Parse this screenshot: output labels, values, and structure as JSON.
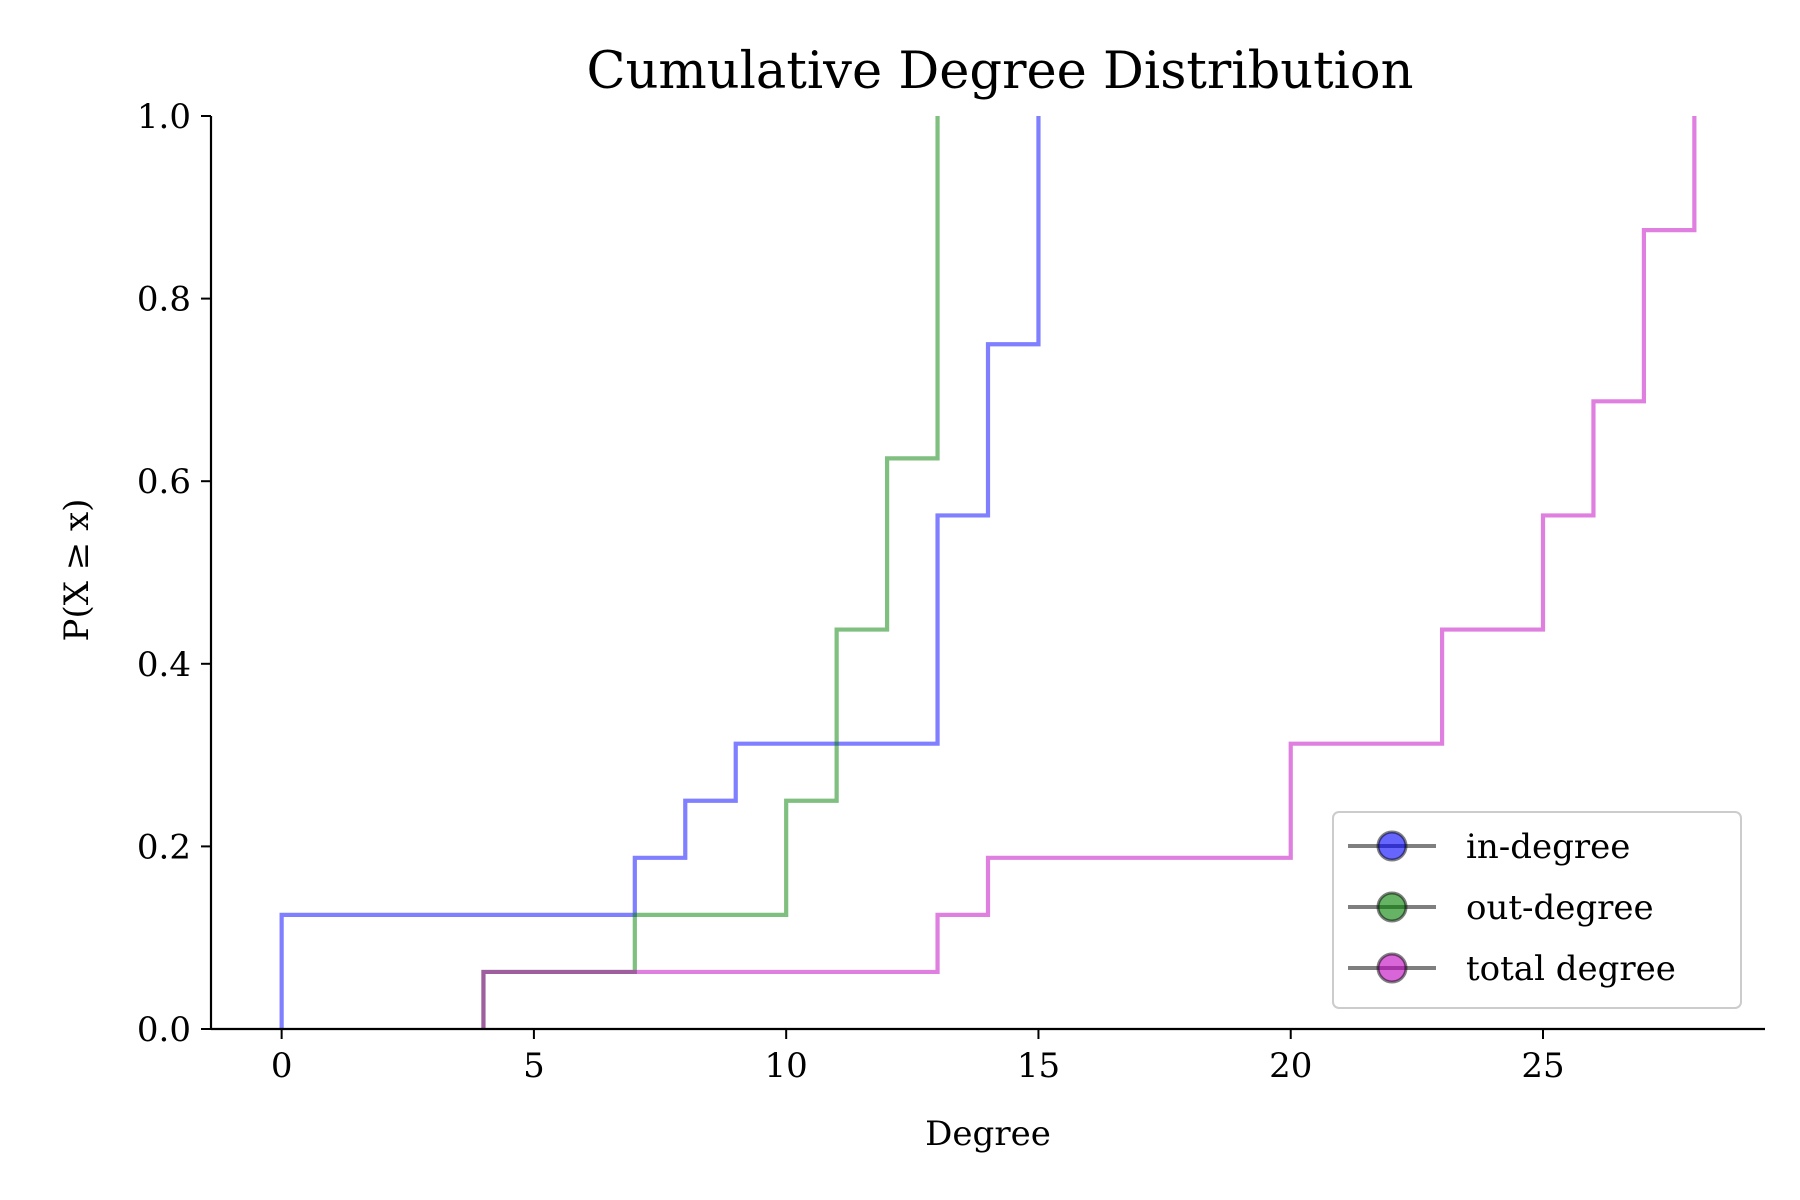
{
  "chart_data": {
    "type": "line",
    "step": "post",
    "title": "Cumulative Degree Distribution",
    "xlabel": "Degree",
    "ylabel": "P(X  ≥  x)",
    "xlim": [
      -1.4,
      29.4
    ],
    "ylim": [
      0,
      1
    ],
    "xticks": [
      0,
      5,
      10,
      15,
      20,
      25
    ],
    "yticks": [
      0.0,
      0.2,
      0.4,
      0.6,
      0.8,
      1.0
    ],
    "xtick_labels": [
      "0",
      "5",
      "10",
      "15",
      "20",
      "25"
    ],
    "ytick_labels": [
      "0.0",
      "0.2",
      "0.4",
      "0.6",
      "0.8",
      "1.0"
    ],
    "grid": false,
    "legend": {
      "position": "lower-right"
    },
    "series": [
      {
        "name": "in-degree",
        "color": "#0000ff",
        "alpha": 0.5,
        "x": [
          0,
          7,
          8,
          9,
          13,
          14,
          15
        ],
        "y": [
          0.125,
          0.1875,
          0.25,
          0.3125,
          0.5625,
          0.75,
          1.0
        ]
      },
      {
        "name": "out-degree",
        "color": "#008000",
        "alpha": 0.5,
        "x": [
          4,
          7,
          10,
          11,
          12,
          13
        ],
        "y": [
          0.0625,
          0.125,
          0.25,
          0.4375,
          0.625,
          1.0
        ]
      },
      {
        "name": "total degree",
        "color": "#c000c0",
        "alpha": 0.5,
        "x": [
          4,
          13,
          14,
          20,
          23,
          25,
          26,
          27,
          28
        ],
        "y": [
          0.0625,
          0.125,
          0.1875,
          0.3125,
          0.4375,
          0.5625,
          0.6875,
          0.875,
          1.0
        ]
      }
    ]
  }
}
